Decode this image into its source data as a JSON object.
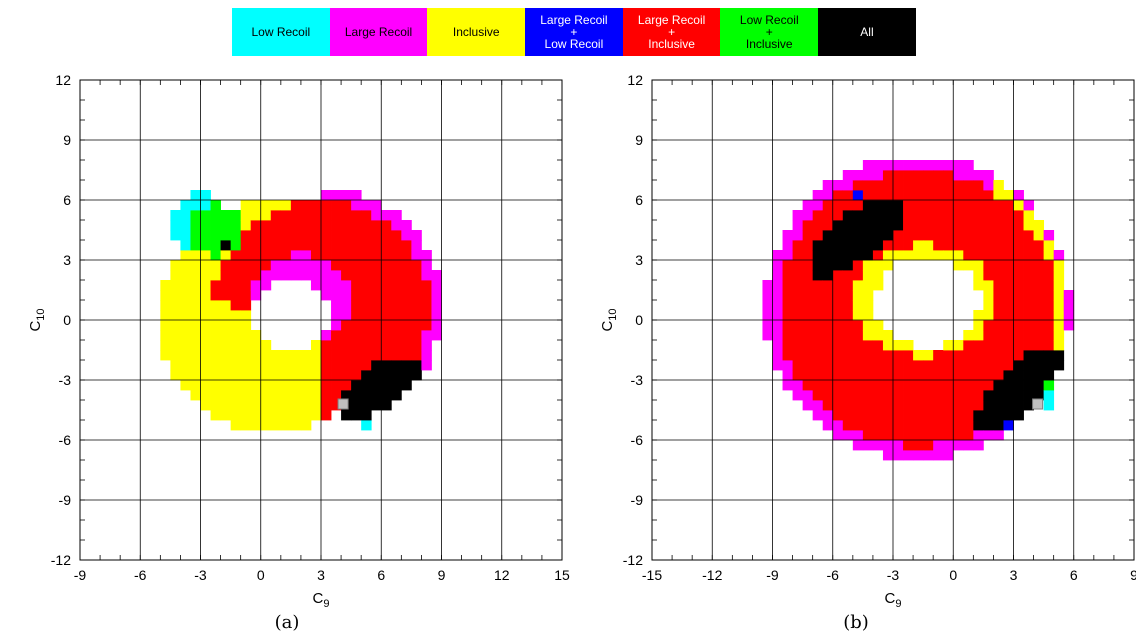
{
  "legend": [
    {
      "key": "low_recoil",
      "label": "Low Recoil",
      "color": "#00ffff",
      "text_color": "#000000"
    },
    {
      "key": "large_recoil",
      "label": "Large Recoil",
      "color": "#ff00ff",
      "text_color": "#000000"
    },
    {
      "key": "inclusive",
      "label": "Inclusive",
      "color": "#ffff00",
      "text_color": "#000000"
    },
    {
      "key": "large_low",
      "label": "Large Recoil\n+\nLow Recoil",
      "color": "#0000ff",
      "text_color": "#ffffff"
    },
    {
      "key": "large_incl",
      "label": "Large Recoil\n+\nInclusive",
      "color": "#ff0000",
      "text_color": "#ffffff"
    },
    {
      "key": "low_incl",
      "label": "Low Recoil\n+\nInclusive",
      "color": "#00ff00",
      "text_color": "#000000"
    },
    {
      "key": "all",
      "label": "All",
      "color": "#000000",
      "text_color": "#ffffff"
    }
  ],
  "chart_data": [
    {
      "type": "heatmap",
      "caption": "(a)",
      "xlabel": "C",
      "xlabel_sub": "9",
      "ylabel": "C",
      "ylabel_sub": "10",
      "xlim": [
        -9,
        15
      ],
      "ylim": [
        -12,
        12
      ],
      "xticks": [
        -9,
        -6,
        -3,
        0,
        3,
        6,
        9,
        12,
        15
      ],
      "yticks": [
        -12,
        -9,
        -6,
        -3,
        0,
        3,
        6,
        9,
        12
      ],
      "grid": true,
      "cell_size": 0.5,
      "sm_point": [
        4.1,
        -4.2
      ],
      "regions": [
        {
          "class": "inclusive",
          "shape": "annulus",
          "center": [
            0.7,
            0.2
          ],
          "r_outer": 5.8,
          "r_inner": 0
        },
        {
          "class": "large_recoil",
          "shape": "annulus",
          "center": [
            3.0,
            0.6
          ],
          "r_outer": 6.0,
          "r_inner": 0,
          "angles": [
            -70,
            90
          ]
        },
        {
          "class": "large_incl",
          "shape": "annulus",
          "center": [
            3.0,
            0.6
          ],
          "r_outer": 5.4,
          "r_inner": 0,
          "angles": [
            -90,
            178
          ]
        },
        {
          "class": "large_recoil",
          "shape": "ellipse",
          "center": [
            2.0,
            1.0
          ],
          "rx": 2.6,
          "ry": 2.3
        },
        {
          "class": "low_recoil",
          "shape": "ellipse",
          "center": [
            -3.0,
            4.8
          ],
          "rx": 1.6,
          "ry": 1.5
        },
        {
          "class": "low_incl",
          "shape": "ellipse",
          "center": [
            -2.2,
            4.5
          ],
          "rx": 1.4,
          "ry": 1.3
        },
        {
          "class": "all",
          "shape": "ellipse",
          "center": [
            5.9,
            -3.3
          ],
          "rx": 2.3,
          "ry": 1.1,
          "angle": 33
        },
        {
          "class": "low_recoil",
          "shape": "ellipse",
          "center": [
            5.2,
            -5.3
          ],
          "rx": 0.2,
          "ry": 0.2
        },
        {
          "class": "none",
          "shape": "ellipse",
          "center": [
            1.5,
            0.3
          ],
          "rx": 1.9,
          "ry": 1.8
        },
        {
          "class": "all",
          "shape": "ellipse",
          "center": [
            -1.8,
            3.7
          ],
          "rx": 0.2,
          "ry": 0.2
        }
      ]
    },
    {
      "type": "heatmap",
      "caption": "(b)",
      "xlabel": "C",
      "xlabel_sub": "9",
      "ylabel": "C",
      "ylabel_sub": "10",
      "xlim": [
        -15,
        9
      ],
      "ylim": [
        -12,
        12
      ],
      "xticks": [
        -15,
        -12,
        -9,
        -6,
        -3,
        0,
        3,
        6,
        9
      ],
      "yticks": [
        -12,
        -9,
        -6,
        -3,
        0,
        3,
        6,
        9,
        12
      ],
      "grid": true,
      "cell_size": 0.5,
      "sm_point": [
        4.2,
        -4.2
      ],
      "regions": [
        {
          "class": "large_recoil",
          "shape": "annulus",
          "center": [
            -1.8,
            0.6
          ],
          "r_outer": 7.6,
          "r_inner": 0
        },
        {
          "class": "inclusive",
          "shape": "annulus",
          "center": [
            -1.8,
            0.6
          ],
          "r_outer": 7.4,
          "r_inner": 0,
          "angles": [
            -25,
            60
          ]
        },
        {
          "class": "large_incl",
          "shape": "annulus",
          "center": [
            -1.8,
            0.6
          ],
          "r_outer": 6.9,
          "r_inner": 0
        },
        {
          "class": "inclusive",
          "shape": "ellipse",
          "center": [
            -1.5,
            1.0
          ],
          "rx": 3.6,
          "ry": 2.8
        },
        {
          "class": "all",
          "shape": "ellipse",
          "center": [
            -4.8,
            4.2
          ],
          "rx": 2.9,
          "ry": 1.2,
          "angle": 37
        },
        {
          "class": "all",
          "shape": "ellipse",
          "center": [
            3.2,
            -3.5
          ],
          "rx": 2.9,
          "ry": 1.1,
          "angle": 45
        },
        {
          "class": "low_recoil",
          "shape": "ellipse",
          "center": [
            4.8,
            -3.6
          ],
          "rx": 0.3,
          "ry": 0.8
        },
        {
          "class": "low_incl",
          "shape": "ellipse",
          "center": [
            4.7,
            -3.1
          ],
          "rx": 0.2,
          "ry": 0.2
        },
        {
          "class": "large_low",
          "shape": "ellipse",
          "center": [
            -4.7,
            6.3
          ],
          "rx": 0.2,
          "ry": 0.2
        },
        {
          "class": "large_low",
          "shape": "ellipse",
          "center": [
            2.7,
            -5.3
          ],
          "rx": 0.2,
          "ry": 0.2
        },
        {
          "class": "none",
          "shape": "ellipse",
          "center": [
            -1.3,
            0.9
          ],
          "rx": 2.6,
          "ry": 2.3
        }
      ]
    }
  ]
}
